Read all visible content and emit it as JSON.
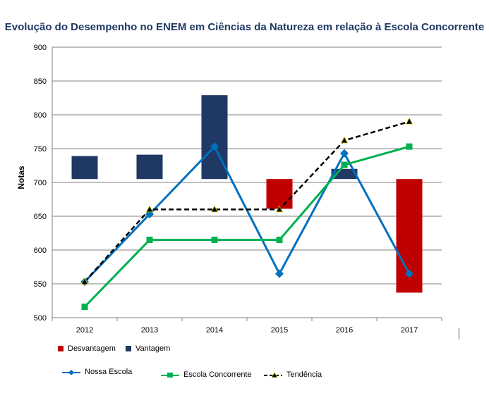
{
  "chart_data": {
    "type": "line",
    "title": "Evolução do Desempenho no ENEM em Ciências da Natureza em relação à Escola Concorrente",
    "ylabel": "Notas",
    "xlabel": "",
    "categories": [
      "2012",
      "2013",
      "2014",
      "2015",
      "2016",
      "2017"
    ],
    "ylim": [
      500,
      900
    ],
    "yticks": [
      500,
      550,
      600,
      650,
      700,
      750,
      800,
      850,
      900
    ],
    "grid": true,
    "series": [
      {
        "name": "Nossa Escola",
        "kind": "line",
        "color": "#0070c0",
        "marker": "diamond",
        "values": [
          553,
          653,
          753,
          565,
          743,
          565
        ]
      },
      {
        "name": "Escola Concorrente",
        "kind": "line",
        "color": "#00b050",
        "marker": "square",
        "values": [
          516,
          615,
          615,
          615,
          726,
          753
        ]
      },
      {
        "name": "Tendência",
        "kind": "dashed-line",
        "color": "#000000",
        "marker": "triangle",
        "values": [
          553,
          660,
          660,
          660,
          762,
          790
        ]
      }
    ],
    "bars": {
      "baseline": 705,
      "Desvantagem": {
        "color": "#c00000",
        "values": [
          null,
          null,
          null,
          661,
          null,
          537
        ]
      },
      "Vantagem": {
        "color": "#1f3864",
        "values": [
          739,
          741,
          829,
          null,
          720,
          null
        ]
      }
    },
    "legend": {
      "row1": [
        "Desvantagem",
        "Vantagem"
      ],
      "row2": [
        "Nossa Escola",
        "Escola Concorrente",
        "Tendência"
      ],
      "placement": "bottom"
    }
  }
}
